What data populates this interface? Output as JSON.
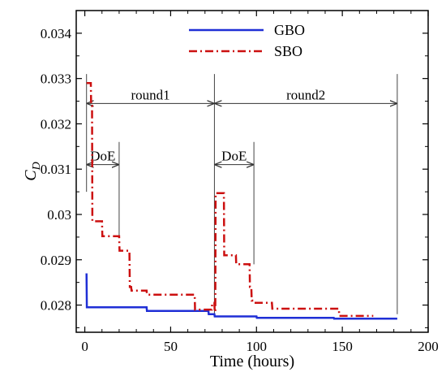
{
  "chart_data": {
    "type": "line",
    "xlabel": "Time (hours)",
    "ylabel_main": "C",
    "ylabel_sub": "D",
    "xlim": [
      -5,
      200
    ],
    "ylim": [
      0.0274,
      0.0345
    ],
    "xticks": [
      0,
      50,
      100,
      150,
      200
    ],
    "xtick_labels": [
      "0",
      "50",
      "100",
      "150",
      "200"
    ],
    "yticks": [
      0.028,
      0.029,
      0.03,
      0.031,
      0.032,
      0.033,
      0.034
    ],
    "ytick_labels": [
      "0.028",
      "0.029",
      "0.03",
      "0.031",
      "0.032",
      "0.033",
      "0.034"
    ],
    "grid": false,
    "legend_position": "top-center",
    "series": [
      {
        "name": "GBO",
        "color": "#1f2fd6",
        "style": "solid",
        "points": [
          [
            1,
            0.0287
          ],
          [
            1.2,
            0.02795
          ],
          [
            36,
            0.02795
          ],
          [
            36.2,
            0.02787
          ],
          [
            72,
            0.02787
          ],
          [
            72.2,
            0.0278
          ],
          [
            75.5,
            0.0278
          ],
          [
            75.7,
            0.02775
          ],
          [
            100,
            0.02775
          ],
          [
            100.2,
            0.02772
          ],
          [
            145,
            0.02772
          ],
          [
            145.2,
            0.0277
          ],
          [
            182,
            0.0277
          ]
        ]
      },
      {
        "name": "SBO",
        "color": "#cc1010",
        "style": "dashdot",
        "points": [
          [
            1,
            0.0329
          ],
          [
            3.5,
            0.0329
          ],
          [
            3.7,
            0.0324
          ],
          [
            4.2,
            0.0324
          ],
          [
            4.4,
            0.02985
          ],
          [
            10,
            0.02985
          ],
          [
            10.2,
            0.02952
          ],
          [
            20,
            0.02952
          ],
          [
            20.2,
            0.0292
          ],
          [
            26,
            0.0292
          ],
          [
            26.2,
            0.0284
          ],
          [
            27,
            0.0284
          ],
          [
            27.2,
            0.02832
          ],
          [
            36,
            0.02832
          ],
          [
            36.2,
            0.02823
          ],
          [
            64,
            0.02823
          ],
          [
            64.2,
            0.0279
          ],
          [
            74,
            0.0279
          ],
          [
            74.2,
            0.02805
          ],
          [
            75.5,
            0.02805
          ],
          [
            75.7,
            0.02785
          ],
          [
            76,
            0.02785
          ],
          [
            76.2,
            0.03047
          ],
          [
            81,
            0.03047
          ],
          [
            81.2,
            0.0291
          ],
          [
            88,
            0.0291
          ],
          [
            88.2,
            0.0289
          ],
          [
            96,
            0.0289
          ],
          [
            96.2,
            0.0284
          ],
          [
            97,
            0.0284
          ],
          [
            97.2,
            0.0281
          ],
          [
            98.5,
            0.0281
          ],
          [
            98.7,
            0.02805
          ],
          [
            109,
            0.02805
          ],
          [
            109.2,
            0.02792
          ],
          [
            148,
            0.02792
          ],
          [
            148.2,
            0.02776
          ],
          [
            168,
            0.02776
          ]
        ]
      }
    ],
    "annotations": [
      {
        "label": "round1",
        "x_start": 1,
        "x_end": 75.5,
        "y": 0.03245
      },
      {
        "label": "round2",
        "x_start": 75.5,
        "x_end": 182,
        "y": 0.03245
      },
      {
        "label": "DoE",
        "x_start": 1,
        "x_end": 20,
        "y": 0.0311
      },
      {
        "label": "DoE",
        "x_start": 75.5,
        "x_end": 98.5,
        "y": 0.0311
      }
    ],
    "vertical_markers": [
      {
        "x": 1,
        "y_top": 0.0331,
        "y_bottom": 0.0305
      },
      {
        "x": 20,
        "y_top": 0.0316,
        "y_bottom": 0.0295
      },
      {
        "x": 75.5,
        "y_top": 0.0331,
        "y_bottom": 0.0278
      },
      {
        "x": 98.5,
        "y_top": 0.0316,
        "y_bottom": 0.0289
      },
      {
        "x": 182,
        "y_top": 0.0331,
        "y_bottom": 0.0278
      }
    ]
  }
}
